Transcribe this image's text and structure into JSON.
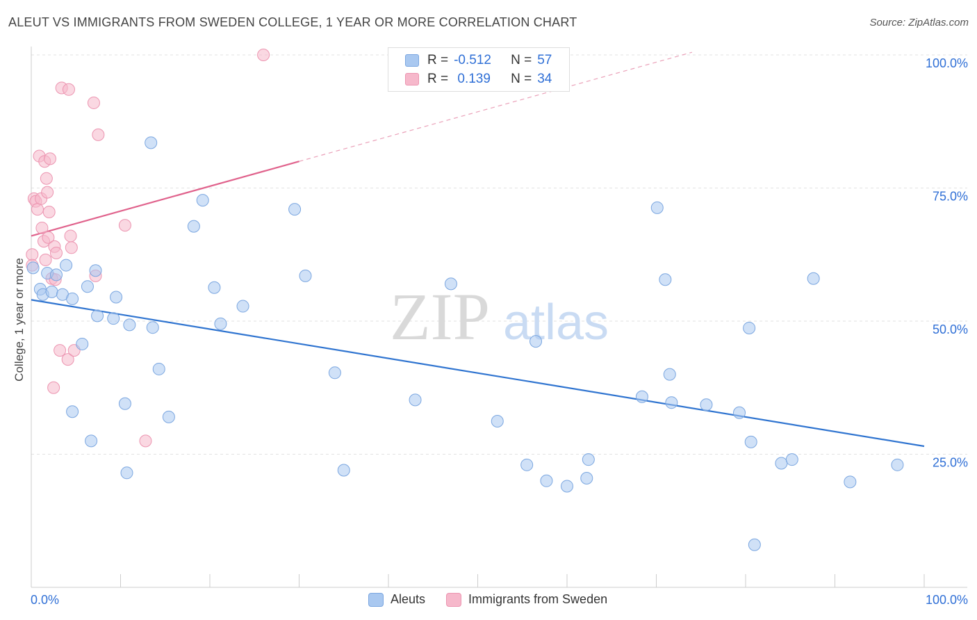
{
  "header": {
    "title": "ALEUT VS IMMIGRANTS FROM SWEDEN COLLEGE, 1 YEAR OR MORE CORRELATION CHART",
    "source": "Source: ZipAtlas.com"
  },
  "watermark": {
    "zip": "ZIP",
    "atlas": "atlas"
  },
  "legend": {
    "rows": [
      {
        "r_label": "R =",
        "r_value": "-0.512",
        "n_label": "N =",
        "n_value": "57"
      },
      {
        "r_label": "R =",
        "r_value": " 0.139",
        "n_label": "N =",
        "n_value": "34"
      }
    ]
  },
  "bottom_legend": {
    "aleuts": "Aleuts",
    "sweden": "Immigrants from Sweden"
  },
  "colors": {
    "aleut_fill": "#a9c8f0",
    "aleut_stroke": "#7aa6e0",
    "aleut_line": "#2f74d0",
    "sweden_fill": "#f6b8cb",
    "sweden_stroke": "#ec94b0",
    "sweden_line": "#e0628c",
    "axis_label": "#2f6fd6",
    "grid": "#e2e2e2"
  },
  "chart_data": {
    "type": "scatter",
    "title": "ALEUT VS IMMIGRANTS FROM SWEDEN COLLEGE, 1 YEAR OR MORE CORRELATION CHART",
    "xlabel": "",
    "ylabel": "College, 1 year or more",
    "xlim": [
      0,
      100
    ],
    "ylim": [
      0,
      100
    ],
    "x_tick_labels": [
      "0.0%",
      "100.0%"
    ],
    "y_tick_labels": [
      "25.0%",
      "50.0%",
      "75.0%",
      "100.0%"
    ],
    "y_ticks": [
      25,
      50,
      75,
      100
    ],
    "grid": true,
    "legend_position": "top-center",
    "series": [
      {
        "name": "Aleuts",
        "R": -0.512,
        "N": 57,
        "trend": {
          "x0": 0,
          "y0": 54.0,
          "x1": 100,
          "y1": 26.5
        },
        "points": [
          [
            0.2,
            60.0
          ],
          [
            1.0,
            56.0
          ],
          [
            1.3,
            55.0
          ],
          [
            1.8,
            59.0
          ],
          [
            2.3,
            55.5
          ],
          [
            2.8,
            58.7
          ],
          [
            3.5,
            55.0
          ],
          [
            3.9,
            60.5
          ],
          [
            4.6,
            54.2
          ],
          [
            5.7,
            45.7
          ],
          [
            6.3,
            56.5
          ],
          [
            7.2,
            59.5
          ],
          [
            7.4,
            51.0
          ],
          [
            9.2,
            50.5
          ],
          [
            9.5,
            54.5
          ],
          [
            11.0,
            49.3
          ],
          [
            13.4,
            83.5
          ],
          [
            13.6,
            48.8
          ],
          [
            14.3,
            41.0
          ],
          [
            15.4,
            32.0
          ],
          [
            18.2,
            67.8
          ],
          [
            19.2,
            72.7
          ],
          [
            20.5,
            56.3
          ],
          [
            21.2,
            49.5
          ],
          [
            23.7,
            52.8
          ],
          [
            29.5,
            71.0
          ],
          [
            30.7,
            58.5
          ],
          [
            34.0,
            40.3
          ],
          [
            4.6,
            33.0
          ],
          [
            6.7,
            27.5
          ],
          [
            10.5,
            34.5
          ],
          [
            10.7,
            21.5
          ],
          [
            35.0,
            22.0
          ],
          [
            43.0,
            35.2
          ],
          [
            47.0,
            57.0
          ],
          [
            52.2,
            31.2
          ],
          [
            55.5,
            23.0
          ],
          [
            56.5,
            46.2
          ],
          [
            57.7,
            20.0
          ],
          [
            60.0,
            19.0
          ],
          [
            62.2,
            20.5
          ],
          [
            62.4,
            24.0
          ],
          [
            68.4,
            35.8
          ],
          [
            70.1,
            71.3
          ],
          [
            71.0,
            57.8
          ],
          [
            71.5,
            40.0
          ],
          [
            71.7,
            34.7
          ],
          [
            75.6,
            34.3
          ],
          [
            79.3,
            32.8
          ],
          [
            80.4,
            48.7
          ],
          [
            80.6,
            27.3
          ],
          [
            81.0,
            8.0
          ],
          [
            84.0,
            23.3
          ],
          [
            85.2,
            24.0
          ],
          [
            87.6,
            58.0
          ],
          [
            91.7,
            19.8
          ],
          [
            97.0,
            23.0
          ]
        ]
      },
      {
        "name": "Immigrants from Sweden",
        "R": 0.139,
        "N": 34,
        "trend": {
          "x0": 0,
          "y0": 66.0,
          "x1": 30,
          "y1": 80.0,
          "dashed_to_x": 74,
          "dashed_to_y": 100.5
        },
        "points": [
          [
            0.1,
            62.5
          ],
          [
            0.3,
            73.0
          ],
          [
            0.5,
            72.5
          ],
          [
            0.7,
            71.0
          ],
          [
            0.9,
            81.0
          ],
          [
            1.1,
            73.0
          ],
          [
            1.2,
            67.5
          ],
          [
            1.4,
            65.0
          ],
          [
            1.5,
            80.0
          ],
          [
            1.6,
            61.5
          ],
          [
            1.7,
            76.8
          ],
          [
            1.8,
            74.2
          ],
          [
            1.9,
            65.7
          ],
          [
            2.0,
            70.5
          ],
          [
            2.1,
            80.5
          ],
          [
            2.3,
            58.0
          ],
          [
            2.5,
            37.5
          ],
          [
            2.6,
            64.0
          ],
          [
            2.7,
            57.8
          ],
          [
            2.8,
            62.8
          ],
          [
            3.2,
            44.5
          ],
          [
            3.4,
            93.8
          ],
          [
            4.1,
            42.8
          ],
          [
            4.2,
            93.5
          ],
          [
            4.4,
            66.0
          ],
          [
            4.5,
            63.8
          ],
          [
            4.8,
            44.5
          ],
          [
            7.0,
            91.0
          ],
          [
            7.2,
            58.5
          ],
          [
            7.5,
            85.0
          ],
          [
            10.5,
            68.0
          ],
          [
            12.8,
            27.5
          ],
          [
            26.0,
            100.0
          ],
          [
            0.1,
            60.5
          ]
        ]
      }
    ]
  }
}
